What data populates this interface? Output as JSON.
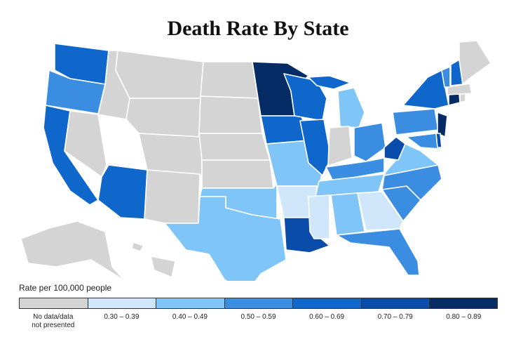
{
  "title": "Death Rate By State",
  "legend": {
    "title": "Rate per 100,000 people",
    "bins": [
      {
        "label": "No data/data not presented",
        "color": "#d4d4d4"
      },
      {
        "label": "0.30 – 0.39",
        "color": "#cfe6fb"
      },
      {
        "label": "0.40 – 0.49",
        "color": "#80c5f8"
      },
      {
        "label": "0.50 – 0.59",
        "color": "#3a8de0"
      },
      {
        "label": "0.60 – 0.69",
        "color": "#0f67cc"
      },
      {
        "label": "0.70 – 0.79",
        "color": "#0a4caa"
      },
      {
        "label": "0.80 – 0.89",
        "color": "#062c66"
      }
    ]
  },
  "regions": [
    4,
    3,
    4,
    0,
    0,
    0,
    0,
    4,
    0,
    0,
    0,
    0,
    0,
    0,
    0,
    2,
    2,
    6,
    4,
    2,
    1,
    5,
    4,
    4,
    2,
    4,
    0,
    3,
    3,
    2,
    1,
    2,
    1,
    3,
    3,
    3,
    2,
    5,
    3,
    4,
    6,
    3,
    5,
    6,
    0,
    0,
    3,
    4,
    0,
    0,
    0,
    0
  ]
}
